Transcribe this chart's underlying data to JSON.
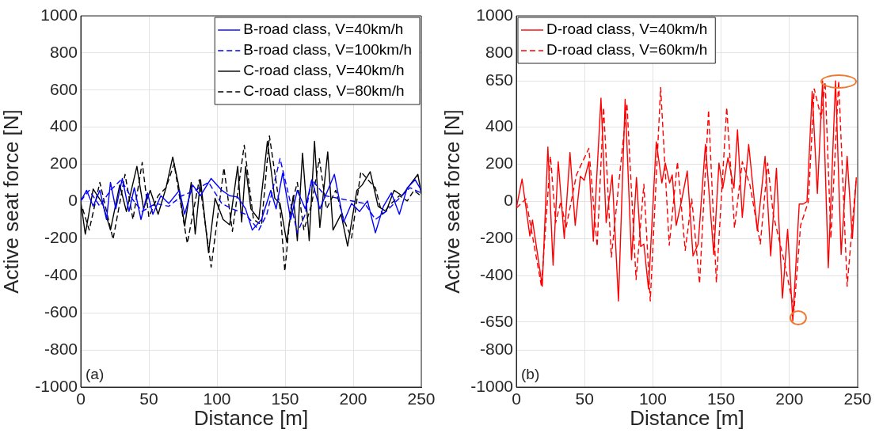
{
  "chart_data": [
    {
      "type": "line",
      "xlabel": "Distance [m]",
      "ylabel": "Active seat force [N]",
      "xlim": [
        0,
        250
      ],
      "xticks": [
        0,
        50,
        100,
        150,
        200,
        250
      ],
      "ylim": [
        -1000,
        1000
      ],
      "yticks": [
        -1000,
        -800,
        -600,
        -400,
        -200,
        0,
        200,
        400,
        600,
        800,
        1000
      ],
      "grid": true,
      "legend": "top right",
      "annotations": [
        "(a)"
      ],
      "series": [
        {
          "name": "B-road class, V=40km/h",
          "color": "#0000ff",
          "line_style": "solid",
          "x": [
            0,
            4.3,
            9.1,
            14,
            18.9,
            21.8,
            25.7,
            30.5,
            35.4,
            39.3,
            44.2,
            49,
            52.9,
            58.8,
            64.6,
            72.4,
            76.3,
            82.1,
            87.9,
            95.7,
            103.5,
            109.3,
            115.2,
            121,
            125.9,
            132.7,
            139.5,
            143.4,
            148.2,
            154.1,
            159,
            164.8,
            169.6,
            175.5,
            181.3,
            186.2,
            193,
            198.8,
            204.7,
            210.5,
            216.3,
            222.2,
            228,
            233.9,
            239.7,
            245.5,
            250
          ],
          "values": [
            3,
            60,
            -26,
            60,
            -97,
            103,
            -40,
            124,
            -54,
            74,
            -97,
            46,
            -69,
            31,
            -11,
            60,
            -69,
            89,
            31,
            124,
            60,
            31,
            24,
            -40,
            -154,
            -97,
            60,
            -40,
            153,
            -97,
            60,
            -40,
            117,
            -40,
            60,
            146,
            -111,
            -11,
            -54,
            3,
            -169,
            -26,
            46,
            -69,
            74,
            117,
            60
          ]
        },
        {
          "name": "B-road class, V=100km/h",
          "color": "#0000ff",
          "line_style": "dashed",
          "x": [
            0,
            6.2,
            14,
            21.8,
            29.6,
            37.4,
            45.1,
            54.9,
            64.6,
            74.3,
            84,
            93.8,
            103.5,
            111.3,
            121,
            130.7,
            136.6,
            146.3,
            154.1,
            159,
            164.8,
            169.6,
            179.4,
            189.1,
            198.8,
            208.6,
            216.3,
            224.1,
            231.9,
            241.6,
            250
          ],
          "values": [
            3,
            60,
            -26,
            60,
            117,
            17,
            -54,
            -11,
            -26,
            31,
            60,
            103,
            -11,
            -40,
            -69,
            -154,
            -69,
            231,
            -11,
            -169,
            -69,
            117,
            31,
            17,
            3,
            -11,
            -97,
            -54,
            3,
            74,
            46
          ]
        },
        {
          "name": "C-road class, V=40km/h",
          "color": "#000000",
          "line_style": "solid",
          "x": [
            0,
            3.3,
            9.1,
            16,
            21.8,
            28.6,
            33.5,
            41.2,
            46.1,
            51,
            56.8,
            62.6,
            67.5,
            71.4,
            76.3,
            81.1,
            84,
            87.9,
            93.8,
            98.6,
            104.5,
            109.3,
            115.2,
            118.1,
            121,
            124.9,
            130.7,
            137,
            142.4,
            146.3,
            151.2,
            156,
            159,
            162.8,
            167.7,
            171.6,
            175.5,
            181.3,
            185.2,
            191.1,
            195.9,
            202.7,
            206.6,
            212.5,
            218.3,
            224.1,
            230,
            235.8,
            241.6,
            247.5,
            250
          ],
          "values": [
            0,
            -176,
            67,
            -11,
            -154,
            89,
            -54,
            189,
            -40,
            60,
            -69,
            74,
            239,
            103,
            -133,
            103,
            -176,
            117,
            -276,
            17,
            -97,
            -126,
            189,
            -111,
            189,
            -40,
            -97,
            324,
            17,
            -11,
            -219,
            31,
            -211,
            260,
            -211,
            324,
            -140,
            267,
            -154,
            -69,
            -240,
            60,
            89,
            160,
            -26,
            -54,
            60,
            31,
            89,
            146,
            39
          ]
        },
        {
          "name": "C-road class, V=80km/h",
          "color": "#000000",
          "line_style": "dashed",
          "x": [
            1.4,
            6.2,
            14,
            23.7,
            32.5,
            38.3,
            45.1,
            50,
            56.8,
            62.6,
            68.5,
            78.2,
            87,
            95.7,
            105.1,
            111.3,
            120,
            126.8,
            132.7,
            138.5,
            146.3,
            149.8,
            154.1,
            159,
            163.8,
            169.6,
            175.1,
            180.4,
            187.2,
            193,
            198.8,
            205.6,
            212.5,
            216.3,
            221.2,
            228,
            233.9,
            239.7,
            244.6,
            249.4
          ],
          "values": [
            -40,
            -154,
            103,
            -204,
            146,
            -97,
            210,
            -83,
            31,
            74,
            203,
            -226,
            117,
            -354,
            181,
            -161,
            303,
            -97,
            -126,
            353,
            -40,
            -376,
            -40,
            103,
            -154,
            -11,
            231,
            -40,
            60,
            -97,
            -197,
            160,
            103,
            74,
            -69,
            -11,
            31,
            3,
            60,
            31
          ]
        }
      ]
    },
    {
      "type": "line",
      "xlabel": "Distance [m]",
      "ylabel": "Active seat force [N]",
      "xlim": [
        0,
        250
      ],
      "xticks": [
        0,
        50,
        100,
        150,
        200,
        250
      ],
      "ylim": [
        -1000,
        1000
      ],
      "yticks": [
        -1000,
        -800,
        -650,
        -400,
        -200,
        0,
        200,
        400,
        650,
        800,
        1000
      ],
      "grid": true,
      "legend": "top left",
      "annotations": [
        "(b)"
      ],
      "series": [
        {
          "name": "D-road class, V=40km/h",
          "color": "#ff0000",
          "line_style": "solid",
          "x": [
            0,
            4.2,
            9.9,
            11.8,
            19,
            23.1,
            26.9,
            30.7,
            35.1,
            39.3,
            43.1,
            46.9,
            49.7,
            53.1,
            56.4,
            62,
            65.8,
            70.2,
            74.8,
            79.7,
            84.4,
            88,
            91.1,
            93.4,
            96.8,
            102.5,
            106.6,
            109.1,
            112.3,
            114.2,
            117.1,
            120.9,
            125.2,
            129.4,
            133.2,
            138.5,
            144.6,
            148.4,
            151.2,
            155,
            159.4,
            162,
            165.5,
            170.2,
            176.5,
            182.2,
            186.3,
            190.5,
            194.9,
            198.7,
            202.5,
            207.2,
            210.1,
            212.9,
            216.7,
            220.5,
            224.3,
            228.5,
            233.8,
            237.9,
            242.3,
            246.1,
            249
          ],
          "values": [
            -36,
            121,
            -186,
            -100,
            -457,
            293,
            -343,
            214,
            -200,
            264,
            -129,
            136,
            114,
            214,
            -214,
            557,
            -114,
            143,
            -536,
            550,
            -314,
            129,
            -243,
            -229,
            -471,
            321,
            100,
            207,
            100,
            143,
            -129,
            0,
            164,
            -293,
            -229,
            307,
            -286,
            207,
            71,
            236,
            71,
            386,
            -86,
            307,
            -157,
            243,
            -293,
            179,
            -521,
            -150,
            -643,
            -14,
            -14,
            0,
            593,
            43,
            650,
            -357,
            650,
            -286,
            243,
            -200,
            129
          ]
        },
        {
          "name": "D-road class, V=60km/h",
          "color": "#ff0000",
          "line_style": "dashed",
          "x": [
            0,
            7,
            18.4,
            25,
            28.8,
            32.6,
            36.4,
            44,
            53.1,
            59.2,
            63.9,
            69.6,
            81,
            87.7,
            93.4,
            98.1,
            105.7,
            112,
            118,
            123.7,
            128.5,
            134.2,
            140.8,
            146.5,
            154.1,
            159.8,
            165.5,
            171.2,
            178.7,
            184.1,
            188.2,
            196.8,
            203.4,
            208.2,
            213.9,
            218.2,
            223.3,
            226.2,
            230.4,
            236.1,
            242.3,
            249
          ],
          "values": [
            -36,
            14,
            -457,
            243,
            -114,
            0,
            -143,
            143,
            286,
            -243,
            507,
            -300,
            529,
            -421,
            93,
            -536,
            614,
            -236,
            214,
            -264,
            14,
            -443,
            493,
            -436,
            507,
            -143,
            214,
            86,
            -229,
            207,
            -71,
            -343,
            -586,
            -129,
            0,
            607,
            450,
            643,
            -200,
            650,
            -457,
            129
          ]
        }
      ]
    }
  ]
}
